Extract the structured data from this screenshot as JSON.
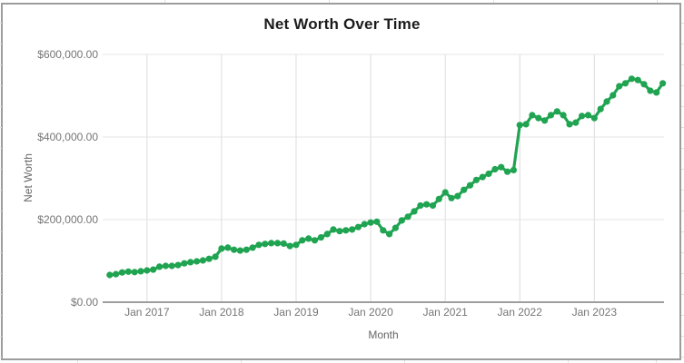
{
  "chart_data": {
    "type": "line",
    "title": "Net Worth Over Time",
    "xlabel": "Month",
    "ylabel": "Net Worth",
    "legend_position": "none",
    "grid": true,
    "series_name": "Net Worth",
    "marker": "circle",
    "x_interval": "monthly",
    "x_start": "Jul 2016",
    "x_end": "Dec 2023",
    "ylim": [
      0,
      600000
    ],
    "y_ticks": [
      {
        "label": "$0.00",
        "value": 0
      },
      {
        "label": "$200,000.00",
        "value": 200000
      },
      {
        "label": "$400,000.00",
        "value": 400000
      },
      {
        "label": "$600,000.00",
        "value": 600000
      }
    ],
    "x_ticks": [
      "Jan 2017",
      "Jan 2018",
      "Jan 2019",
      "Jan 2020",
      "Jan 2021",
      "Jan 2022",
      "Jan 2023"
    ],
    "values": [
      66000,
      68000,
      72000,
      74000,
      73000,
      75000,
      77000,
      79000,
      86000,
      88000,
      88000,
      90000,
      94000,
      97000,
      99000,
      101000,
      105000,
      110000,
      130000,
      132000,
      127000,
      125000,
      127000,
      132000,
      139000,
      141000,
      143000,
      143000,
      142000,
      136000,
      139000,
      150000,
      154000,
      150000,
      157000,
      165000,
      176000,
      172000,
      174000,
      176000,
      182000,
      189000,
      193000,
      195000,
      174000,
      165000,
      180000,
      198000,
      207000,
      220000,
      234000,
      237000,
      234000,
      250000,
      266000,
      252000,
      257000,
      272000,
      283000,
      296000,
      303000,
      311000,
      322000,
      327000,
      316000,
      320000,
      429000,
      431000,
      453000,
      446000,
      440000,
      453000,
      462000,
      453000,
      431000,
      435000,
      451000,
      453000,
      446000,
      468000,
      486000,
      501000,
      523000,
      530000,
      541000,
      538000,
      528000,
      512000,
      508000,
      530000
    ]
  },
  "colors": {
    "series": "#20a452",
    "gridline_h": "#e6e6e6",
    "gridline_v": "#dcdcdc",
    "axis_line": "#9e9e9e",
    "tick_label": "#757575",
    "axis_title": "#666666",
    "title_text": "#1c1c1c",
    "chart_border": "#9c9c9c",
    "sheet_gridline": "#e0e0e0"
  }
}
